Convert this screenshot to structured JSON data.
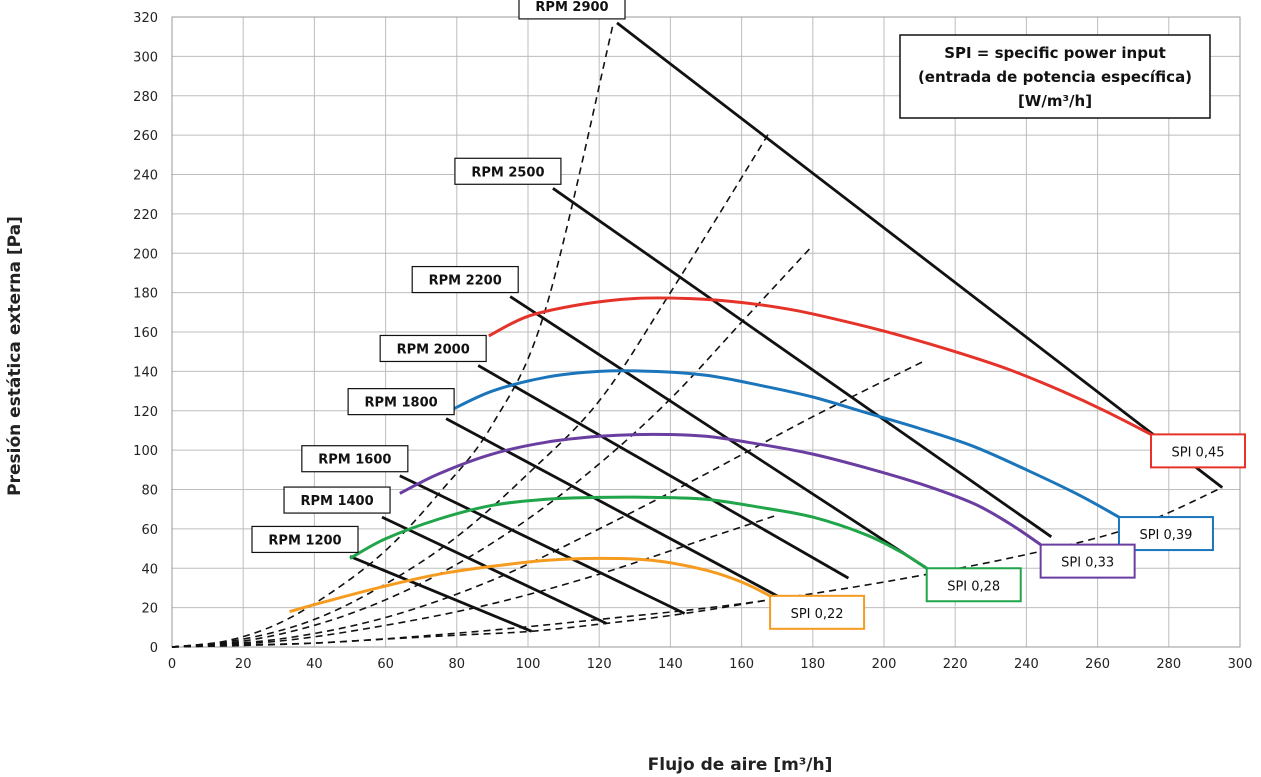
{
  "chart_data": {
    "type": "line",
    "xlabel": "Flujo de aire [m³/h]",
    "ylabel": "Presión estática externa [Pa]",
    "xlim": [
      0,
      300
    ],
    "ylim": [
      0,
      320
    ],
    "x_ticks": [
      "0",
      "20",
      "40",
      "60",
      "80",
      "100",
      "120",
      "140",
      "160",
      "180",
      "200",
      "220",
      "240",
      "260",
      "280",
      "300"
    ],
    "y_ticks": [
      "0",
      "20",
      "40",
      "60",
      "80",
      "100",
      "120",
      "140",
      "160",
      "180",
      "200",
      "220",
      "240",
      "260",
      "280",
      "300",
      "320"
    ],
    "grid": true,
    "annotation": {
      "lines": [
        "SPI = specific power input",
        "(entrada de potencia específica)",
        "[W/m³/h]"
      ]
    },
    "rpm_series": [
      {
        "name": "RPM 1200",
        "points": [
          [
            50,
            46
          ],
          [
            101,
            8
          ]
        ]
      },
      {
        "name": "RPM 1400",
        "points": [
          [
            59,
            66
          ],
          [
            122,
            12
          ]
        ]
      },
      {
        "name": "RPM 1600",
        "points": [
          [
            64,
            87
          ],
          [
            144,
            17
          ]
        ]
      },
      {
        "name": "RPM 1800",
        "points": [
          [
            77,
            116
          ],
          [
            171,
            25
          ]
        ]
      },
      {
        "name": "RPM 2000",
        "points": [
          [
            86,
            143
          ],
          [
            190,
            35
          ]
        ]
      },
      {
        "name": "RPM 2200",
        "points": [
          [
            95,
            178
          ],
          [
            212,
            40
          ]
        ]
      },
      {
        "name": "RPM 2500",
        "points": [
          [
            107,
            233
          ],
          [
            247,
            56
          ]
        ]
      },
      {
        "name": "RPM 2900",
        "points": [
          [
            125,
            317
          ],
          [
            295,
            81
          ]
        ]
      }
    ],
    "system_curves": [
      {
        "points": [
          [
            0,
            0
          ],
          [
            15,
            3
          ],
          [
            30,
            12
          ],
          [
            45,
            28
          ],
          [
            60,
            49
          ],
          [
            75,
            78
          ],
          [
            90,
            113
          ],
          [
            105,
            172
          ],
          [
            124,
            317
          ]
        ]
      },
      {
        "points": [
          [
            0,
            0
          ],
          [
            20,
            4
          ],
          [
            40,
            14
          ],
          [
            60,
            32
          ],
          [
            80,
            56
          ],
          [
            100,
            88
          ],
          [
            120,
            125
          ],
          [
            140,
            180
          ],
          [
            168,
            262
          ]
        ]
      },
      {
        "points": [
          [
            0,
            0
          ],
          [
            20,
            3
          ],
          [
            40,
            11
          ],
          [
            60,
            24
          ],
          [
            80,
            42
          ],
          [
            100,
            65
          ],
          [
            120,
            93
          ],
          [
            140,
            126
          ],
          [
            160,
            165
          ],
          [
            180,
            204
          ]
        ]
      },
      {
        "points": [
          [
            0,
            0
          ],
          [
            30,
            4
          ],
          [
            60,
            15
          ],
          [
            90,
            34
          ],
          [
            120,
            60
          ],
          [
            150,
            88
          ],
          [
            180,
            117
          ],
          [
            211,
            145
          ]
        ]
      },
      {
        "points": [
          [
            0,
            0
          ],
          [
            30,
            3
          ],
          [
            60,
            11
          ],
          [
            90,
            22
          ],
          [
            120,
            37
          ],
          [
            150,
            55
          ],
          [
            170,
            67
          ]
        ]
      },
      {
        "points": [
          [
            0,
            0
          ],
          [
            40,
            2
          ],
          [
            80,
            7
          ],
          [
            120,
            14
          ],
          [
            160,
            22
          ],
          [
            200,
            33
          ],
          [
            240,
            47
          ],
          [
            270,
            61
          ],
          [
            295,
            81
          ]
        ]
      },
      {
        "points": [
          [
            0,
            0
          ],
          [
            20,
            1
          ],
          [
            40,
            2
          ],
          [
            60,
            4
          ],
          [
            80,
            6
          ],
          [
            101,
            8
          ],
          [
            122,
            12
          ],
          [
            144,
            17
          ],
          [
            171,
            25
          ]
        ]
      }
    ],
    "spi_series": [
      {
        "name": "SPI 0,45",
        "color": "#e5332a",
        "points": [
          [
            89,
            158
          ],
          [
            100,
            168
          ],
          [
            115,
            174
          ],
          [
            130,
            177
          ],
          [
            145,
            177
          ],
          [
            160,
            175
          ],
          [
            175,
            171
          ],
          [
            190,
            165
          ],
          [
            205,
            158
          ],
          [
            220,
            150
          ],
          [
            235,
            141
          ],
          [
            250,
            130
          ],
          [
            262,
            120
          ],
          [
            275,
            108
          ]
        ]
      },
      {
        "name": "SPI 0,39",
        "color": "#1b75bb",
        "points": [
          [
            78,
            120
          ],
          [
            90,
            130
          ],
          [
            105,
            137
          ],
          [
            120,
            140
          ],
          [
            135,
            140
          ],
          [
            150,
            138
          ],
          [
            165,
            133
          ],
          [
            180,
            127
          ],
          [
            195,
            119
          ],
          [
            210,
            111
          ],
          [
            225,
            102
          ],
          [
            240,
            90
          ],
          [
            255,
            77
          ],
          [
            266,
            66
          ]
        ]
      },
      {
        "name": "SPI 0,33",
        "color": "#6a3ea1",
        "points": [
          [
            64,
            78
          ],
          [
            75,
            88
          ],
          [
            90,
            98
          ],
          [
            105,
            104
          ],
          [
            120,
            107
          ],
          [
            135,
            108
          ],
          [
            150,
            107
          ],
          [
            165,
            103
          ],
          [
            180,
            98
          ],
          [
            195,
            91
          ],
          [
            210,
            83
          ],
          [
            225,
            73
          ],
          [
            235,
            63
          ],
          [
            244,
            52
          ]
        ]
      },
      {
        "name": "SPI 0,28",
        "color": "#20a54a",
        "points": [
          [
            50,
            45
          ],
          [
            60,
            55
          ],
          [
            75,
            65
          ],
          [
            90,
            72
          ],
          [
            105,
            75
          ],
          [
            120,
            76
          ],
          [
            135,
            76
          ],
          [
            150,
            75
          ],
          [
            165,
            71
          ],
          [
            180,
            66
          ],
          [
            195,
            57
          ],
          [
            205,
            48
          ],
          [
            212,
            40
          ]
        ]
      },
      {
        "name": "SPI 0,22",
        "color": "#f59b20",
        "points": [
          [
            33,
            18
          ],
          [
            45,
            24
          ],
          [
            60,
            31
          ],
          [
            75,
            37
          ],
          [
            90,
            41
          ],
          [
            105,
            44
          ],
          [
            120,
            45
          ],
          [
            135,
            44
          ],
          [
            150,
            39
          ],
          [
            160,
            33
          ],
          [
            168,
            26
          ]
        ]
      }
    ]
  }
}
